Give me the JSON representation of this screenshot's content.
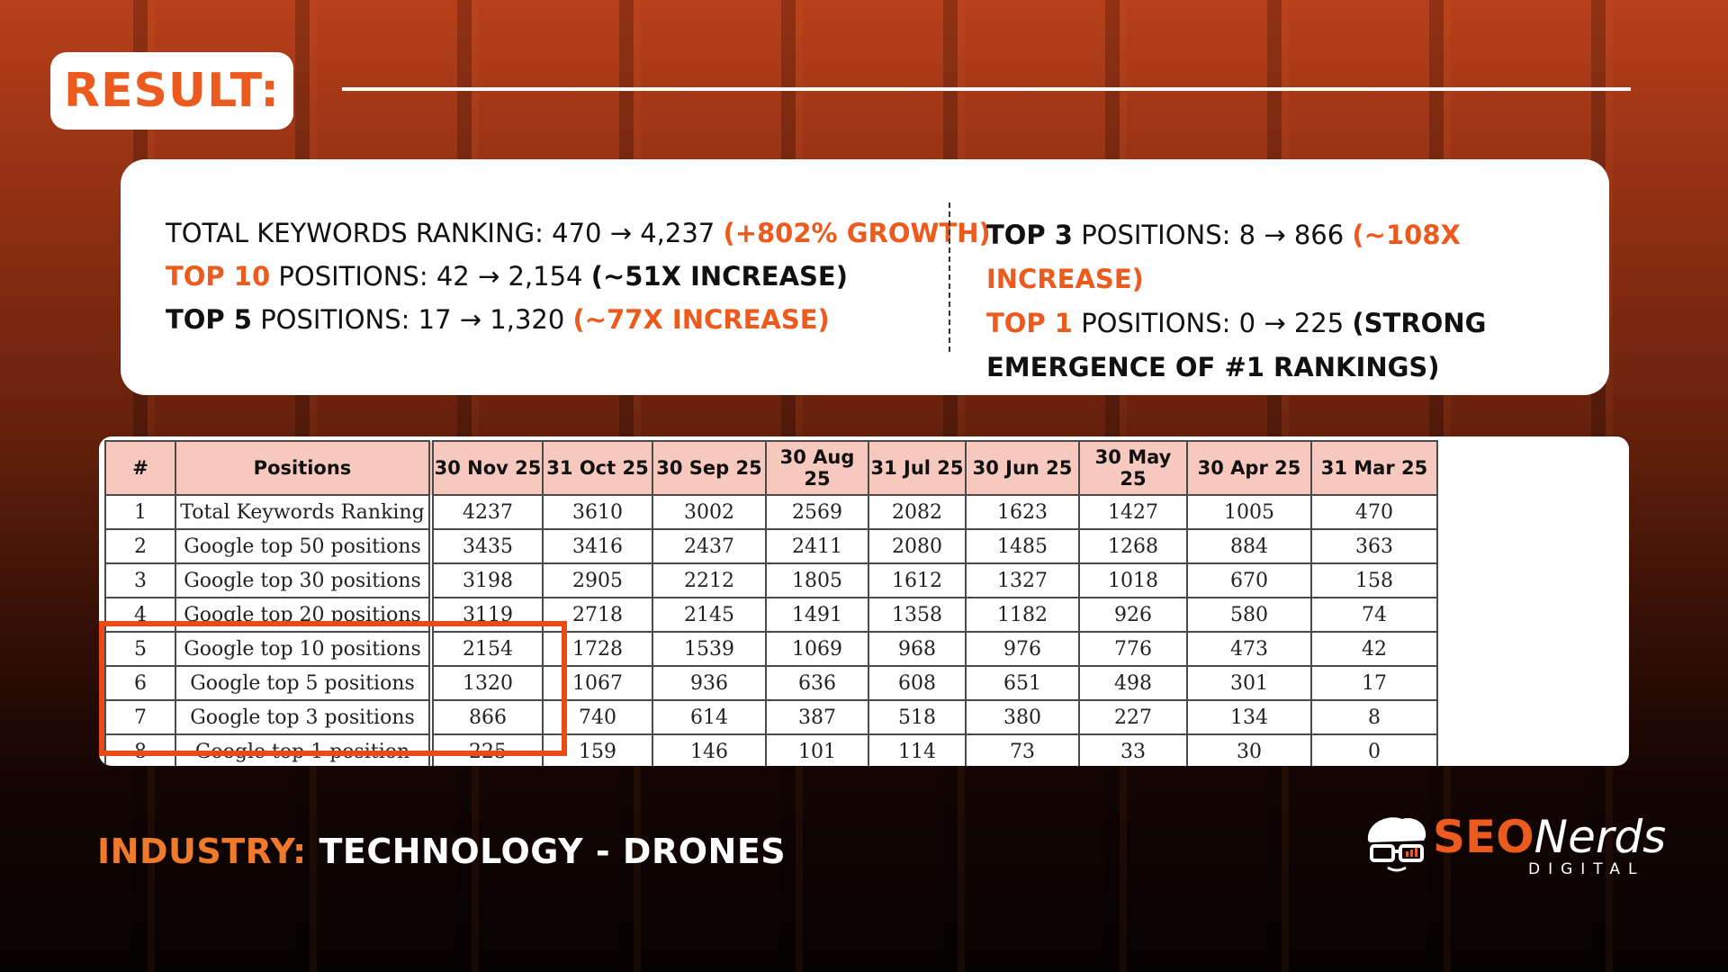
{
  "header": {
    "title": "RESULT:"
  },
  "summary": {
    "left": [
      {
        "label": "TOTAL KEYWORDS RANKING:",
        "label_style": "plain",
        "value": "470 → 4,237",
        "highlight": "(+802% GROWTH)",
        "highlight_style": "accent"
      },
      {
        "label": "TOP 10",
        "label_style": "accent",
        "rest": "POSITIONS:",
        "value": "42 → 2,154",
        "highlight": "(~51X INCREASE)",
        "highlight_style": "dark"
      },
      {
        "label": "TOP 5",
        "label_style": "dark",
        "rest": "POSITIONS:",
        "value": "17 → 1,320",
        "highlight": "(~77X INCREASE)",
        "highlight_style": "accent"
      }
    ],
    "right": [
      {
        "label": "TOP 3",
        "label_style": "dark",
        "rest": "POSITIONS:",
        "value": "8 → 866",
        "highlight": "(~108X INCREASE)",
        "highlight_style": "accent"
      },
      {
        "label": "TOP 1",
        "label_style": "accent",
        "rest": "POSITIONS:",
        "value": "0 → 225",
        "highlight": "(STRONG EMERGENCE OF #1 RANKINGS)",
        "highlight_style": "dark"
      }
    ]
  },
  "table": {
    "headers": [
      "#",
      "Positions",
      "30 Nov 25",
      "31 Oct 25",
      "30 Sep 25",
      "30 Aug 25",
      "31 Jul 25",
      "30 Jun 25",
      "30 May 25",
      "30 Apr 25",
      "31 Mar 25"
    ],
    "rows": [
      [
        "1",
        "Total Keywords Ranking",
        "4237",
        "3610",
        "3002",
        "2569",
        "2082",
        "1623",
        "1427",
        "1005",
        "470"
      ],
      [
        "2",
        "Google top 50 positions",
        "3435",
        "3416",
        "2437",
        "2411",
        "2080",
        "1485",
        "1268",
        "884",
        "363"
      ],
      [
        "3",
        "Google top 30 positions",
        "3198",
        "2905",
        "2212",
        "1805",
        "1612",
        "1327",
        "1018",
        "670",
        "158"
      ],
      [
        "4",
        "Google top 20 positions",
        "3119",
        "2718",
        "2145",
        "1491",
        "1358",
        "1182",
        "926",
        "580",
        "74"
      ],
      [
        "5",
        "Google top 10 positions",
        "2154",
        "1728",
        "1539",
        "1069",
        "968",
        "976",
        "776",
        "473",
        "42"
      ],
      [
        "6",
        "Google top 5 positions",
        "1320",
        "1067",
        "936",
        "636",
        "608",
        "651",
        "498",
        "301",
        "17"
      ],
      [
        "7",
        "Google top 3 positions",
        "866",
        "740",
        "614",
        "387",
        "518",
        "380",
        "227",
        "134",
        "8"
      ],
      [
        "8",
        "Google top 1 position",
        "225",
        "159",
        "146",
        "101",
        "114",
        "73",
        "33",
        "30",
        "0"
      ]
    ]
  },
  "industry": {
    "label": "INDUSTRY:",
    "value": "TECHNOLOGY - DRONES"
  },
  "brand": {
    "name_part1": "SEO",
    "name_part2": "Nerds",
    "subtitle": "DIGITAL"
  },
  "colors": {
    "accent": "#ec5a1e",
    "highlight_box": "#ec4a14",
    "table_header_bg": "#f6c8be"
  }
}
